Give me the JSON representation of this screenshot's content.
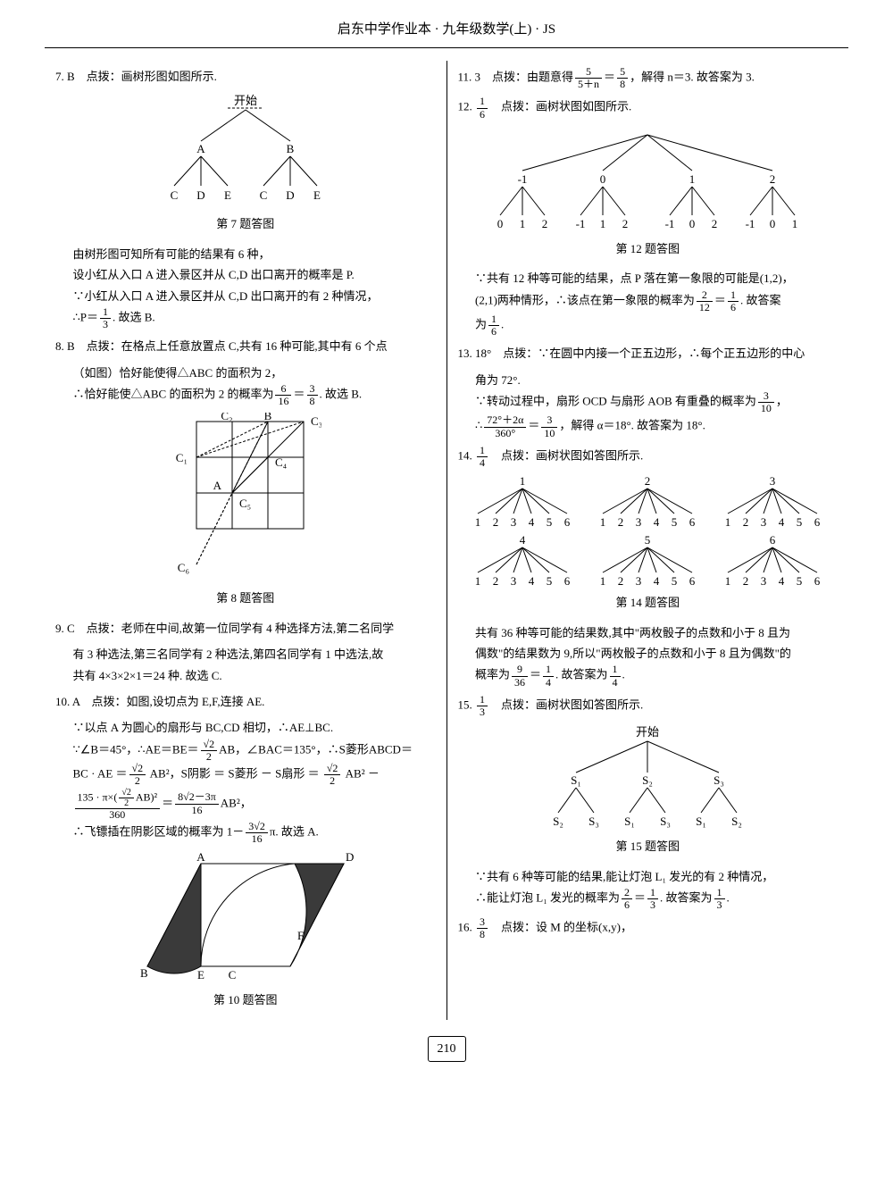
{
  "header": "启东中学作业本 · 九年级数学(上) · JS",
  "page_number": "210",
  "left": {
    "q7": {
      "head": "7. B　点拨：画树形图如图所示.",
      "tree": {
        "root": "开始",
        "level1": [
          "A",
          "B"
        ],
        "level2": [
          "C",
          "D",
          "E",
          "C",
          "D",
          "E"
        ]
      },
      "cap": "第 7 题答图",
      "l1": "由树形图可知所有可能的结果有 6 种，",
      "l2": "设小红从入口 A 进入景区并从 C,D 出口离开的概率是 P.",
      "l3": "∵小红从入口 A 进入景区并从 C,D 出口离开的有 2 种情况，",
      "l4a": "∴P＝",
      "l4f": {
        "n": "1",
        "d": "3"
      },
      "l4b": ". 故选 B."
    },
    "q8": {
      "head": "8. B　点拨：在格点上任意放置点 C,共有 16 种可能,其中有 6 个点",
      "head2": "（如图）恰好能使得△ABC 的面积为 2，",
      "l1a": "∴恰好能使△ABC 的面积为 2 的概率为",
      "f1": {
        "n": "6",
        "d": "16"
      },
      "eq": "＝",
      "f2": {
        "n": "3",
        "d": "8"
      },
      "l1b": ". 故选 B.",
      "labels": {
        "C1": "C₁",
        "C2": "C₂",
        "C3": "C₃",
        "C4": "C₄",
        "C5": "C₅",
        "C6": "C₆",
        "A": "A",
        "B": "B"
      },
      "cap": "第 8 题答图"
    },
    "q9": {
      "head": "9. C　点拨：老师在中间,故第一位同学有 4 种选择方法,第二名同学",
      "l1": "有 3 种选法,第三名同学有 2 种选法,第四名同学有 1 中选法,故",
      "l2": "共有 4×3×2×1＝24 种. 故选 C."
    },
    "q10": {
      "head": "10. A　点拨：如图,设切点为 E,F,连接 AE.",
      "l1": "∵以点 A 为圆心的扇形与 BC,CD 相切，∴AE⊥BC.",
      "l2a": "∵∠B＝45°，∴AE＝BE＝",
      "f1": {
        "n": "√2",
        "d": "2"
      },
      "l2b": "AB，∠BAC＝135°，∴S菱形ABCD＝",
      "l3a": "BC · AE ＝",
      "f2": {
        "n": "√2",
        "d": "2"
      },
      "l3b": " AB²，S阴影 ＝ S菱形 － S扇形 ＝ ",
      "f3": {
        "n": "√2",
        "d": "2"
      },
      "l3c": " AB² －",
      "l4num": "135 · π×(",
      "f4": {
        "n": "√2",
        "d": "2"
      },
      "l4num2": "AB)²",
      "l4den": "360",
      "eq": "＝",
      "f5": {
        "n": "8√2－3π",
        "d": "16"
      },
      "l4c": "AB²，",
      "l5a": "∴飞镖插在阴影区域的概率为 1－",
      "f6": {
        "n": "3√2",
        "d": "16"
      },
      "l5b": "π. 故选 A.",
      "labels": {
        "A": "A",
        "B": "B",
        "C": "C",
        "D": "D",
        "E": "E",
        "F": "F"
      },
      "cap": "第 10 题答图"
    }
  },
  "right": {
    "q11": {
      "t1": "11. 3　点拨：由题意得",
      "f1": {
        "n": "5",
        "d": "5＋n"
      },
      "eq": "＝",
      "f2": {
        "n": "5",
        "d": "8"
      },
      "t2": "，解得 n＝3. 故答案为 3."
    },
    "q12": {
      "t1a": "12. ",
      "f0": {
        "n": "1",
        "d": "6"
      },
      "t1b": "　点拨：画树状图如图所示.",
      "tree": {
        "level1": [
          "-1",
          "0",
          "1",
          "2"
        ],
        "level2": [
          [
            "0",
            "1",
            "2"
          ],
          [
            "-1",
            "1",
            "2"
          ],
          [
            "-1",
            "0",
            "2"
          ],
          [
            "-1",
            "0",
            "1"
          ]
        ]
      },
      "cap": "第 12 题答图",
      "l1": "∵共有 12 种等可能的结果，点 P 落在第一象限的可能是(1,2)，",
      "l2a": "(2,1)两种情形，∴该点在第一象限的概率为",
      "f1": {
        "n": "2",
        "d": "12"
      },
      "eq": "＝",
      "f2": {
        "n": "1",
        "d": "6"
      },
      "l2b": ". 故答案",
      "l3a": "为",
      "f3": {
        "n": "1",
        "d": "6"
      },
      "l3b": "."
    },
    "q13": {
      "head": "13. 18°　点拨：∵在圆中内接一个正五边形，∴每个正五边形的中心",
      "l1": "角为 72°.",
      "l2a": "∵转动过程中，扇形 OCD 与扇形 AOB 有重叠的概率为",
      "f1": {
        "n": "3",
        "d": "10"
      },
      "l2b": "，",
      "l3a": "∴",
      "f2": {
        "n": "72°＋2α",
        "d": "360°"
      },
      "eq": "＝",
      "f3": {
        "n": "3",
        "d": "10"
      },
      "l3b": "，解得 α＝18°. 故答案为 18°."
    },
    "q14": {
      "t1a": "14. ",
      "f0": {
        "n": "1",
        "d": "4"
      },
      "t1b": "　点拨：画树状图如答图所示.",
      "groups": [
        {
          "root": "1",
          "leaves": [
            "1",
            "2",
            "3",
            "4",
            "5",
            "6"
          ]
        },
        {
          "root": "2",
          "leaves": [
            "1",
            "2",
            "3",
            "4",
            "5",
            "6"
          ]
        },
        {
          "root": "3",
          "leaves": [
            "1",
            "2",
            "3",
            "4",
            "5",
            "6"
          ]
        },
        {
          "root": "4",
          "leaves": [
            "1",
            "2",
            "3",
            "4",
            "5",
            "6"
          ]
        },
        {
          "root": "5",
          "leaves": [
            "1",
            "2",
            "3",
            "4",
            "5",
            "6"
          ]
        },
        {
          "root": "6",
          "leaves": [
            "1",
            "2",
            "3",
            "4",
            "5",
            "6"
          ]
        }
      ],
      "cap": "第 14 题答图",
      "l1": "共有 36 种等可能的结果数,其中\"两枚骰子的点数和小于 8 且为",
      "l2": "偶数\"的结果数为 9,所以\"两枚骰子的点数和小于 8 且为偶数\"的",
      "l3a": "概率为",
      "f1": {
        "n": "9",
        "d": "36"
      },
      "eq": "＝",
      "f2": {
        "n": "1",
        "d": "4"
      },
      "l3b": ". 故答案为",
      "f3": {
        "n": "1",
        "d": "4"
      },
      "l3c": "."
    },
    "q15": {
      "t1a": "15. ",
      "f0": {
        "n": "1",
        "d": "3"
      },
      "t1b": "　点拨：画树状图如答图所示.",
      "tree": {
        "root": "开始",
        "level1": [
          "S₁",
          "S₂",
          "S₃"
        ],
        "level2": [
          [
            "S₂",
            "S₃"
          ],
          [
            "S₁",
            "S₃"
          ],
          [
            "S₁",
            "S₂"
          ]
        ]
      },
      "cap": "第 15 题答图",
      "l1": "∵共有 6 种等可能的结果,能让灯泡 L₁ 发光的有 2 种情况，",
      "l2a": "∴能让灯泡 L₁ 发光的概率为",
      "f1": {
        "n": "2",
        "d": "6"
      },
      "eq": "＝",
      "f2": {
        "n": "1",
        "d": "3"
      },
      "l2b": ". 故答案为",
      "f3": {
        "n": "1",
        "d": "3"
      },
      "l2c": "."
    },
    "q16": {
      "t1a": "16. ",
      "f0": {
        "n": "3",
        "d": "8"
      },
      "t1b": "　点拨：设 M 的坐标(x,y)，"
    }
  },
  "style": {
    "line_color": "#000000",
    "fill_dark": "#3a3a3a",
    "bg": "#ffffff"
  }
}
